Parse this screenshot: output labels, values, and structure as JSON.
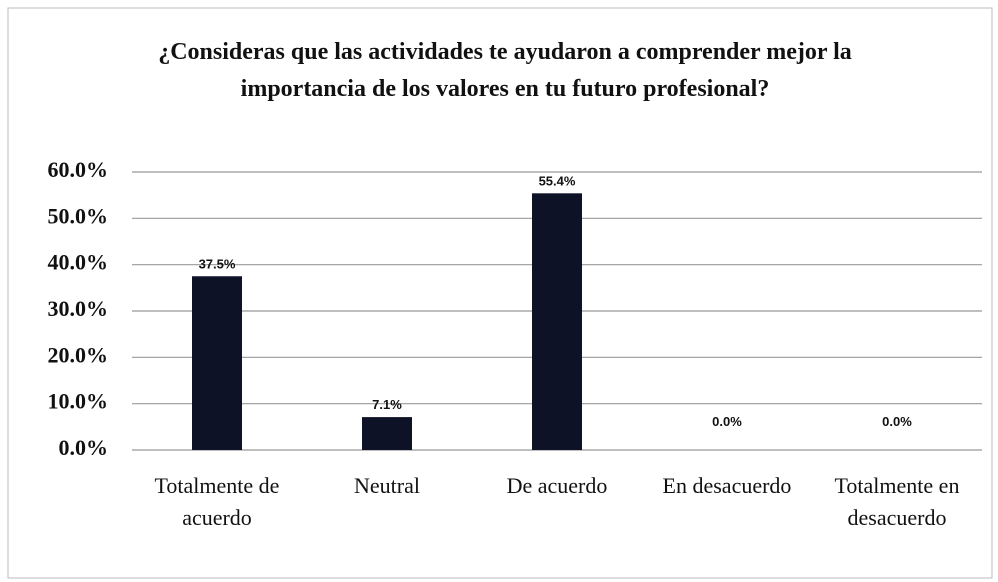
{
  "chart_data": {
    "type": "bar",
    "title": "¿Consideras que las actividades te ayudaron a comprender mejor la importancia de los valores en tu futuro profesional?",
    "categories": [
      "Totalmente de acuerdo",
      "Neutral",
      "De acuerdo",
      "En desacuerdo",
      "Totalmente en desacuerdo"
    ],
    "values": [
      37.5,
      7.1,
      55.4,
      0,
      0
    ],
    "value_labels": [
      "37.5%",
      "7.1%",
      "55.4%",
      "0.0%",
      "0.0%"
    ],
    "color": "#0d1226",
    "ylim": [
      0,
      60
    ],
    "yticks": [
      {
        "value": 0,
        "label": "0.0%"
      },
      {
        "value": 10,
        "label": "10.0%"
      },
      {
        "value": 20,
        "label": "20.0%"
      },
      {
        "value": 30,
        "label": "30.0%"
      },
      {
        "value": 40,
        "label": "40.0%"
      },
      {
        "value": 50,
        "label": "50.0%"
      },
      {
        "value": 60,
        "label": "60.0%"
      }
    ],
    "grid": true
  }
}
